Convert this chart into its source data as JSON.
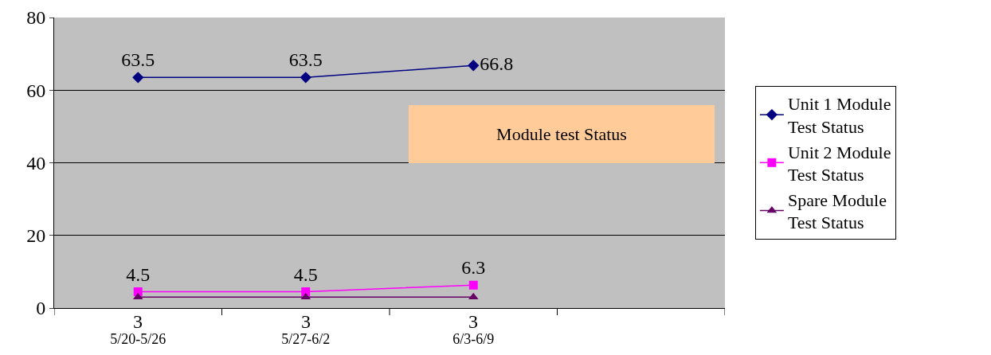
{
  "chart_data": {
    "type": "line",
    "categories": [
      "5/20-5/26",
      "5/27-6/2",
      "6/3-6/9",
      null
    ],
    "series": [
      {
        "name": "Unit 1 Module Test Status",
        "color": "#000080",
        "marker": "diamond",
        "values": [
          63.5,
          63.5,
          66.8,
          null
        ]
      },
      {
        "name": "Unit 2 Module Test Status",
        "color": "#ff00ff",
        "marker": "square",
        "values": [
          4.5,
          4.5,
          6.3,
          null
        ]
      },
      {
        "name": "Spare Module Test Status",
        "color": "#660066",
        "marker": "triangle",
        "values": [
          3,
          3,
          3,
          null
        ]
      }
    ],
    "ylim": [
      0,
      80
    ],
    "yticks": [
      0,
      20,
      40,
      60,
      80
    ],
    "grid": "y",
    "legend": "right",
    "data_labels": true,
    "annotations": [
      "Module test Status"
    ]
  }
}
